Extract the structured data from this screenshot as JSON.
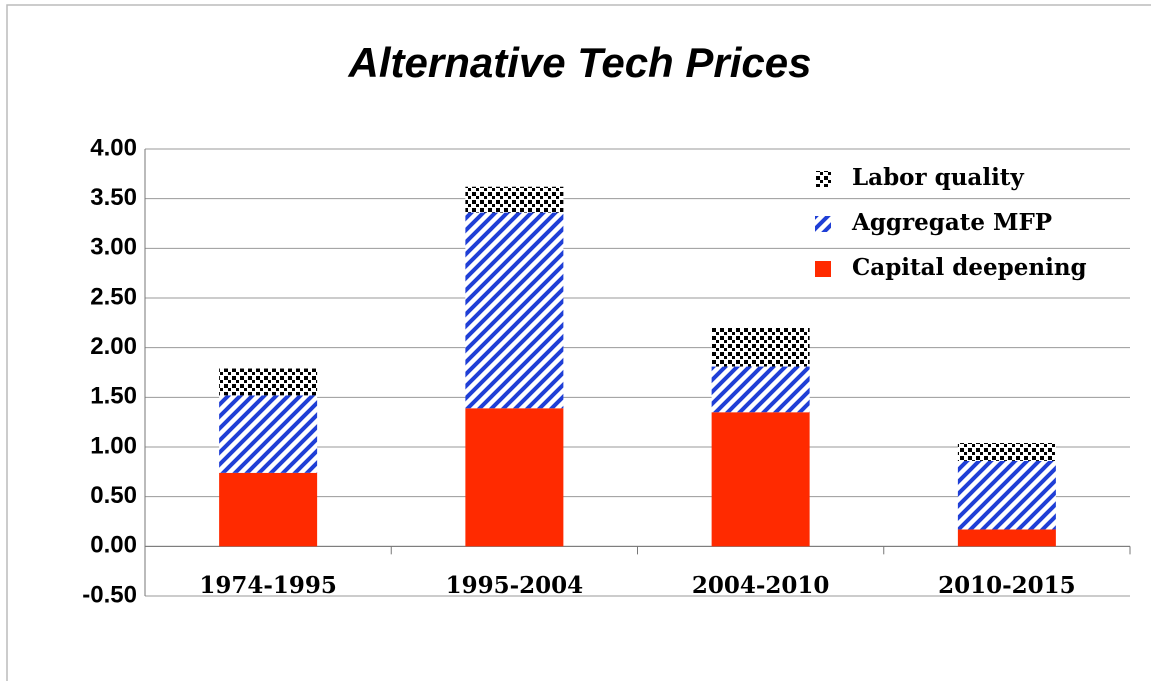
{
  "chart_data": {
    "type": "stacked_bar",
    "title": "Alternative Tech Prices",
    "categories": [
      "1974-1995",
      "1995-2004",
      "2004-2010",
      "2010-2015"
    ],
    "series": [
      {
        "name": "Capital deepening",
        "color": "#ff2a00",
        "values": [
          0.74,
          1.39,
          1.35,
          0.17
        ]
      },
      {
        "name": "Aggregate MFP",
        "color": "#1f3fd6",
        "values": [
          0.78,
          1.97,
          0.46,
          0.69
        ]
      },
      {
        "name": "Labor quality",
        "color": "#000000",
        "values": [
          0.27,
          0.26,
          0.39,
          0.18
        ]
      }
    ],
    "ylim": [
      -0.5,
      4
    ],
    "yticks": [
      {
        "value": -0.5,
        "label": "-0.50"
      },
      {
        "value": 0,
        "label": "0.00"
      },
      {
        "value": 0.5,
        "label": "0.50"
      },
      {
        "value": 1,
        "label": "1.00"
      },
      {
        "value": 1.5,
        "label": "1.50"
      },
      {
        "value": 2,
        "label": "2.00"
      },
      {
        "value": 2.5,
        "label": "2.50"
      },
      {
        "value": 3,
        "label": "3.00"
      },
      {
        "value": 3.5,
        "label": "3.50"
      },
      {
        "value": 4,
        "label": "4.00"
      }
    ],
    "grid": true,
    "legend": "upper right"
  }
}
